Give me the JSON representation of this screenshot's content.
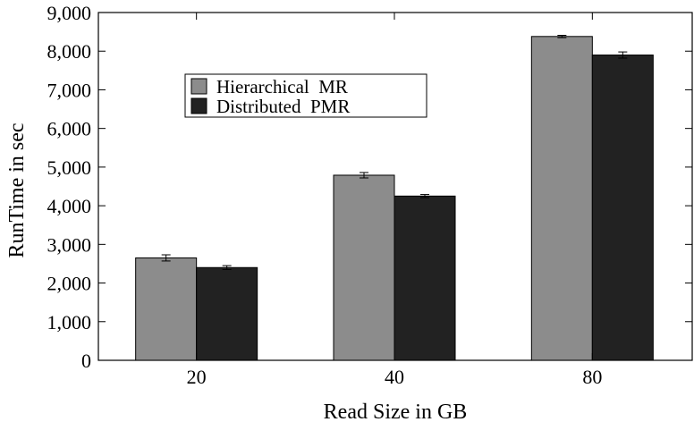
{
  "chart_data": {
    "type": "bar",
    "categories": [
      "20",
      "40",
      "80"
    ],
    "series": [
      {
        "name": "Hierarchical  MR",
        "color": "#8c8c8c",
        "values": [
          2650,
          4790,
          8380
        ],
        "error": [
          80,
          70,
          30
        ]
      },
      {
        "name": "Distributed  PMR",
        "color": "#222222",
        "values": [
          2400,
          4250,
          7900
        ],
        "error": [
          50,
          40,
          80
        ]
      }
    ],
    "title": "",
    "xlabel": "Read Size in GB",
    "ylabel": "RunTime in sec",
    "ylim": [
      0,
      9000
    ],
    "yticks": [
      0,
      1000,
      2000,
      3000,
      4000,
      5000,
      6000,
      7000,
      8000,
      9000
    ],
    "ytick_labels": [
      "0",
      "1,000",
      "2,000",
      "3,000",
      "4,000",
      "5,000",
      "6,000",
      "7,000",
      "8,000",
      "9,000"
    ],
    "grid": false,
    "legend_position": "upper-left"
  }
}
